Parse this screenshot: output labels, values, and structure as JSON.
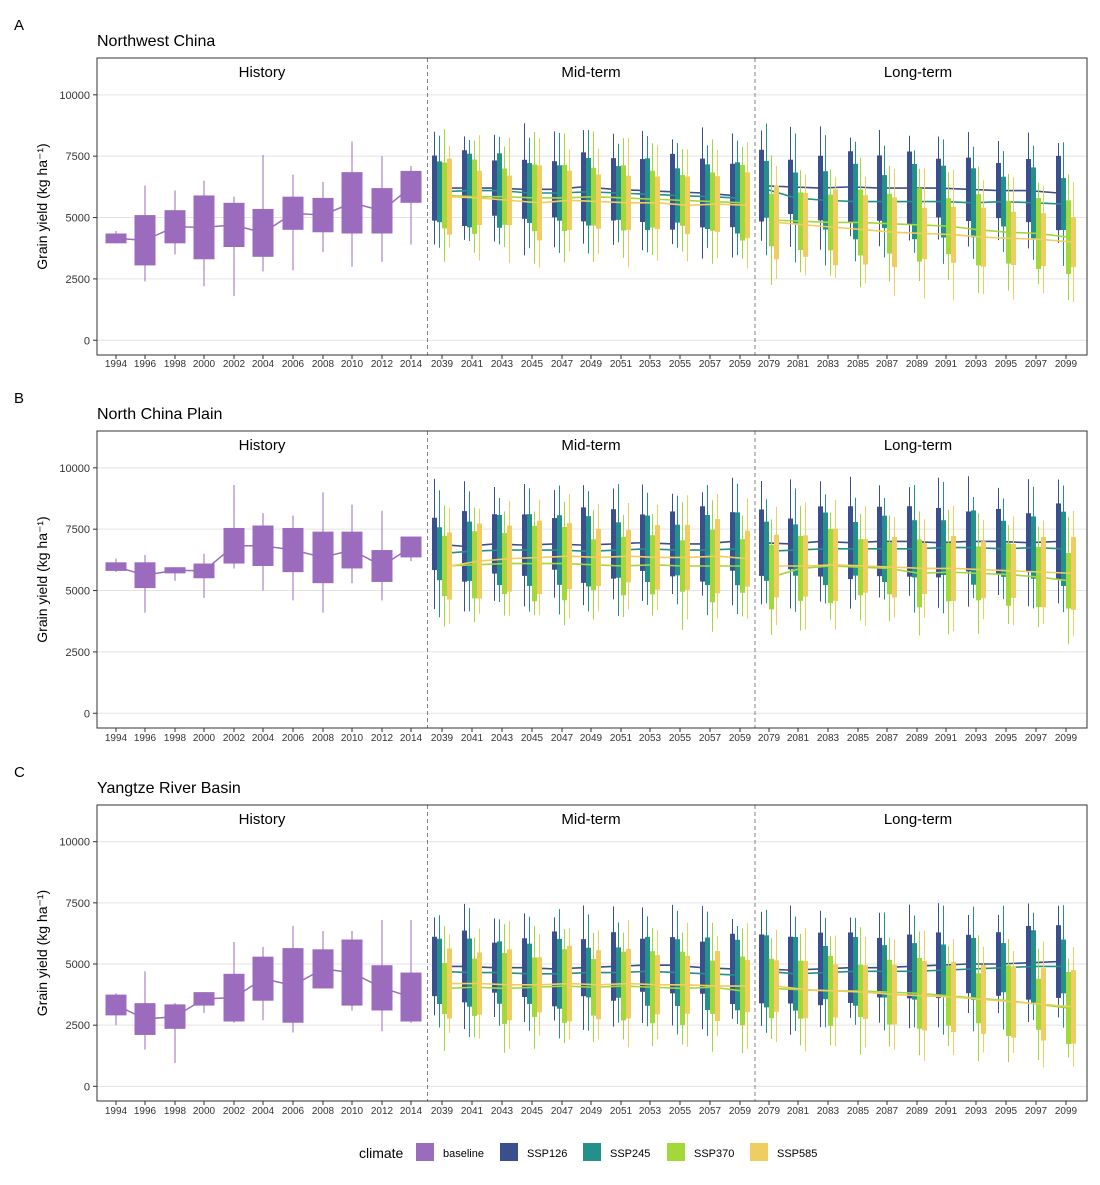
{
  "colors": {
    "baseline": "#9b6bbd",
    "SSP126": "#3a4f8e",
    "SSP245": "#23908a",
    "SSP370": "#a2d83a",
    "SSP585": "#efcd63",
    "grid": "#e3e3e3",
    "divider": "#808080"
  },
  "legend": {
    "title": "climate",
    "items": [
      "baseline",
      "SSP126",
      "SSP245",
      "SSP370",
      "SSP585"
    ]
  },
  "axis": {
    "ylabel": "Grain yield (kg ha⁻¹)",
    "yticks": [
      "0",
      "2500",
      "5000",
      "7500",
      "10000"
    ],
    "ylim": [
      -600,
      11500
    ],
    "history_years": [
      "1994",
      "1996",
      "1998",
      "2000",
      "2002",
      "2004",
      "2006",
      "2008",
      "2010",
      "2012",
      "2014"
    ],
    "mid_years": [
      "2039",
      "2041",
      "2043",
      "2045",
      "2047",
      "2049",
      "2051",
      "2053",
      "2055",
      "2057",
      "2059"
    ],
    "long_years": [
      "2079",
      "2081",
      "2083",
      "2085",
      "2087",
      "2089",
      "2091",
      "2093",
      "2095",
      "2097",
      "2099"
    ]
  },
  "chart_data": [
    {
      "type": "boxplot",
      "label": "A",
      "title": "Northwest China",
      "periods": [
        "History",
        "Mid-term",
        "Long-term"
      ],
      "history": {
        "q1": [
          3950,
          3050,
          3950,
          3300,
          3800,
          3400,
          4500,
          4400,
          4350,
          4350,
          5600
        ],
        "q3": [
          4350,
          5100,
          5300,
          5900,
          5600,
          5350,
          5850,
          5800,
          6850,
          6200,
          6900
        ],
        "min": [
          3950,
          2400,
          3500,
          2200,
          1800,
          2800,
          2850,
          3600,
          3000,
          3200,
          3900
        ],
        "max": [
          4450,
          6300,
          6100,
          6500,
          5850,
          7550,
          6750,
          6450,
          8100,
          7500,
          7100
        ]
      },
      "ssp_mid": {
        "SSP126": [
          6200,
          6200,
          6200,
          6150,
          6150,
          6250,
          6150,
          6100,
          6050,
          6000,
          5900
        ],
        "SSP245": [
          6050,
          6100,
          6100,
          6000,
          6000,
          6050,
          6000,
          5950,
          5900,
          5850,
          5800
        ],
        "SSP370": [
          5900,
          5850,
          5850,
          5800,
          5800,
          5850,
          5800,
          5750,
          5700,
          5650,
          5600
        ],
        "SSP585": [
          5850,
          5800,
          5700,
          5600,
          5700,
          5650,
          5600,
          5600,
          5500,
          5550,
          5500
        ]
      },
      "ssp_long": {
        "SSP126": [
          6300,
          6250,
          6200,
          6250,
          6200,
          6200,
          6200,
          6150,
          6100,
          6100,
          6000
        ],
        "SSP245": [
          6150,
          5800,
          5700,
          5650,
          5650,
          5650,
          5650,
          5600,
          5650,
          5600,
          5550
        ],
        "SSP370": [
          4900,
          4850,
          4800,
          4800,
          4750,
          4700,
          4650,
          4500,
          4400,
          4350,
          4200
        ],
        "SSP585": [
          4800,
          4700,
          4600,
          4500,
          4400,
          4350,
          4300,
          4200,
          4150,
          4100,
          4000
        ]
      }
    },
    {
      "type": "boxplot",
      "label": "B",
      "title": "North China Plain",
      "periods": [
        "History",
        "Mid-term",
        "Long-term"
      ],
      "history": {
        "q1": [
          5800,
          5100,
          5700,
          5500,
          6100,
          6000,
          5750,
          5300,
          5900,
          5350,
          6350
        ],
        "q3": [
          6150,
          6150,
          5950,
          6100,
          7550,
          7650,
          7550,
          7400,
          7400,
          6650,
          7200
        ],
        "min": [
          5750,
          4100,
          5400,
          4700,
          5900,
          5000,
          4600,
          4100,
          5300,
          4600,
          6200
        ],
        "max": [
          6300,
          6450,
          5950,
          6500,
          9300,
          8150,
          8050,
          9000,
          8500,
          8250,
          7200
        ]
      },
      "ssp_mid": {
        "SSP126": [
          6900,
          6800,
          6900,
          6850,
          6900,
          6850,
          6900,
          6950,
          6900,
          6900,
          7000
        ],
        "SSP245": [
          6500,
          6600,
          6650,
          6650,
          6650,
          6600,
          6650,
          6700,
          6650,
          6650,
          6700
        ],
        "SSP370": [
          6000,
          6050,
          6100,
          6100,
          6100,
          6050,
          6000,
          6050,
          6000,
          6000,
          6000
        ],
        "SSP585": [
          6000,
          6200,
          6300,
          6350,
          6400,
          6350,
          6400,
          6350,
          6350,
          6400,
          6300
        ]
      },
      "ssp_long": {
        "SSP126": [
          6950,
          6900,
          7000,
          6950,
          7000,
          7000,
          6950,
          7000,
          7000,
          6950,
          7000
        ],
        "SSP245": [
          6600,
          6650,
          6700,
          6700,
          6700,
          6700,
          6750,
          6750,
          6700,
          6750,
          6700
        ],
        "SSP370": [
          5550,
          5900,
          6000,
          5950,
          5900,
          5700,
          5750,
          5700,
          5650,
          5550,
          5400
        ],
        "SSP585": [
          6000,
          6000,
          6050,
          6000,
          5950,
          5900,
          5900,
          5850,
          5800,
          5750,
          5700
        ]
      }
    },
    {
      "type": "boxplot",
      "label": "C",
      "title": "Yangtze River Basin",
      "periods": [
        "History",
        "Mid-term",
        "Long-term"
      ],
      "history": {
        "q1": [
          2900,
          2100,
          2350,
          3300,
          2650,
          3500,
          2600,
          4000,
          3300,
          3100,
          2650
        ],
        "q3": [
          3750,
          3400,
          3350,
          3850,
          4600,
          5300,
          5650,
          5600,
          6000,
          4950,
          4650
        ],
        "min": [
          2500,
          1500,
          950,
          3000,
          2600,
          2700,
          2200,
          4000,
          3100,
          2250,
          2600
        ],
        "max": [
          3800,
          4700,
          3400,
          3850,
          5900,
          5700,
          6550,
          6350,
          6350,
          6800,
          6800
        ]
      },
      "ssp_mid": {
        "SSP126": [
          4900,
          4900,
          4850,
          4850,
          4800,
          4850,
          4900,
          4950,
          4950,
          4850,
          4800
        ],
        "SSP245": [
          4700,
          4650,
          4650,
          4600,
          4600,
          4650,
          4650,
          4700,
          4650,
          4600,
          4550
        ],
        "SSP370": [
          4000,
          4050,
          4000,
          4050,
          4100,
          4050,
          4100,
          4050,
          4000,
          4050,
          3900
        ],
        "SSP585": [
          4200,
          4200,
          4150,
          4150,
          4200,
          4150,
          4200,
          4150,
          4150,
          4100,
          4100
        ]
      },
      "ssp_long": {
        "SSP126": [
          4800,
          4750,
          4800,
          4850,
          4850,
          4900,
          4950,
          5000,
          5000,
          5050,
          5100
        ],
        "SSP245": [
          4700,
          4600,
          4650,
          4700,
          4700,
          4700,
          4750,
          4800,
          4850,
          4900,
          4900
        ],
        "SSP370": [
          4000,
          3950,
          3900,
          3900,
          3850,
          3800,
          3700,
          3600,
          3500,
          3350,
          3200
        ],
        "SSP585": [
          4100,
          3950,
          3900,
          3850,
          3750,
          3700,
          3650,
          3550,
          3450,
          3350,
          3250
        ]
      }
    }
  ]
}
